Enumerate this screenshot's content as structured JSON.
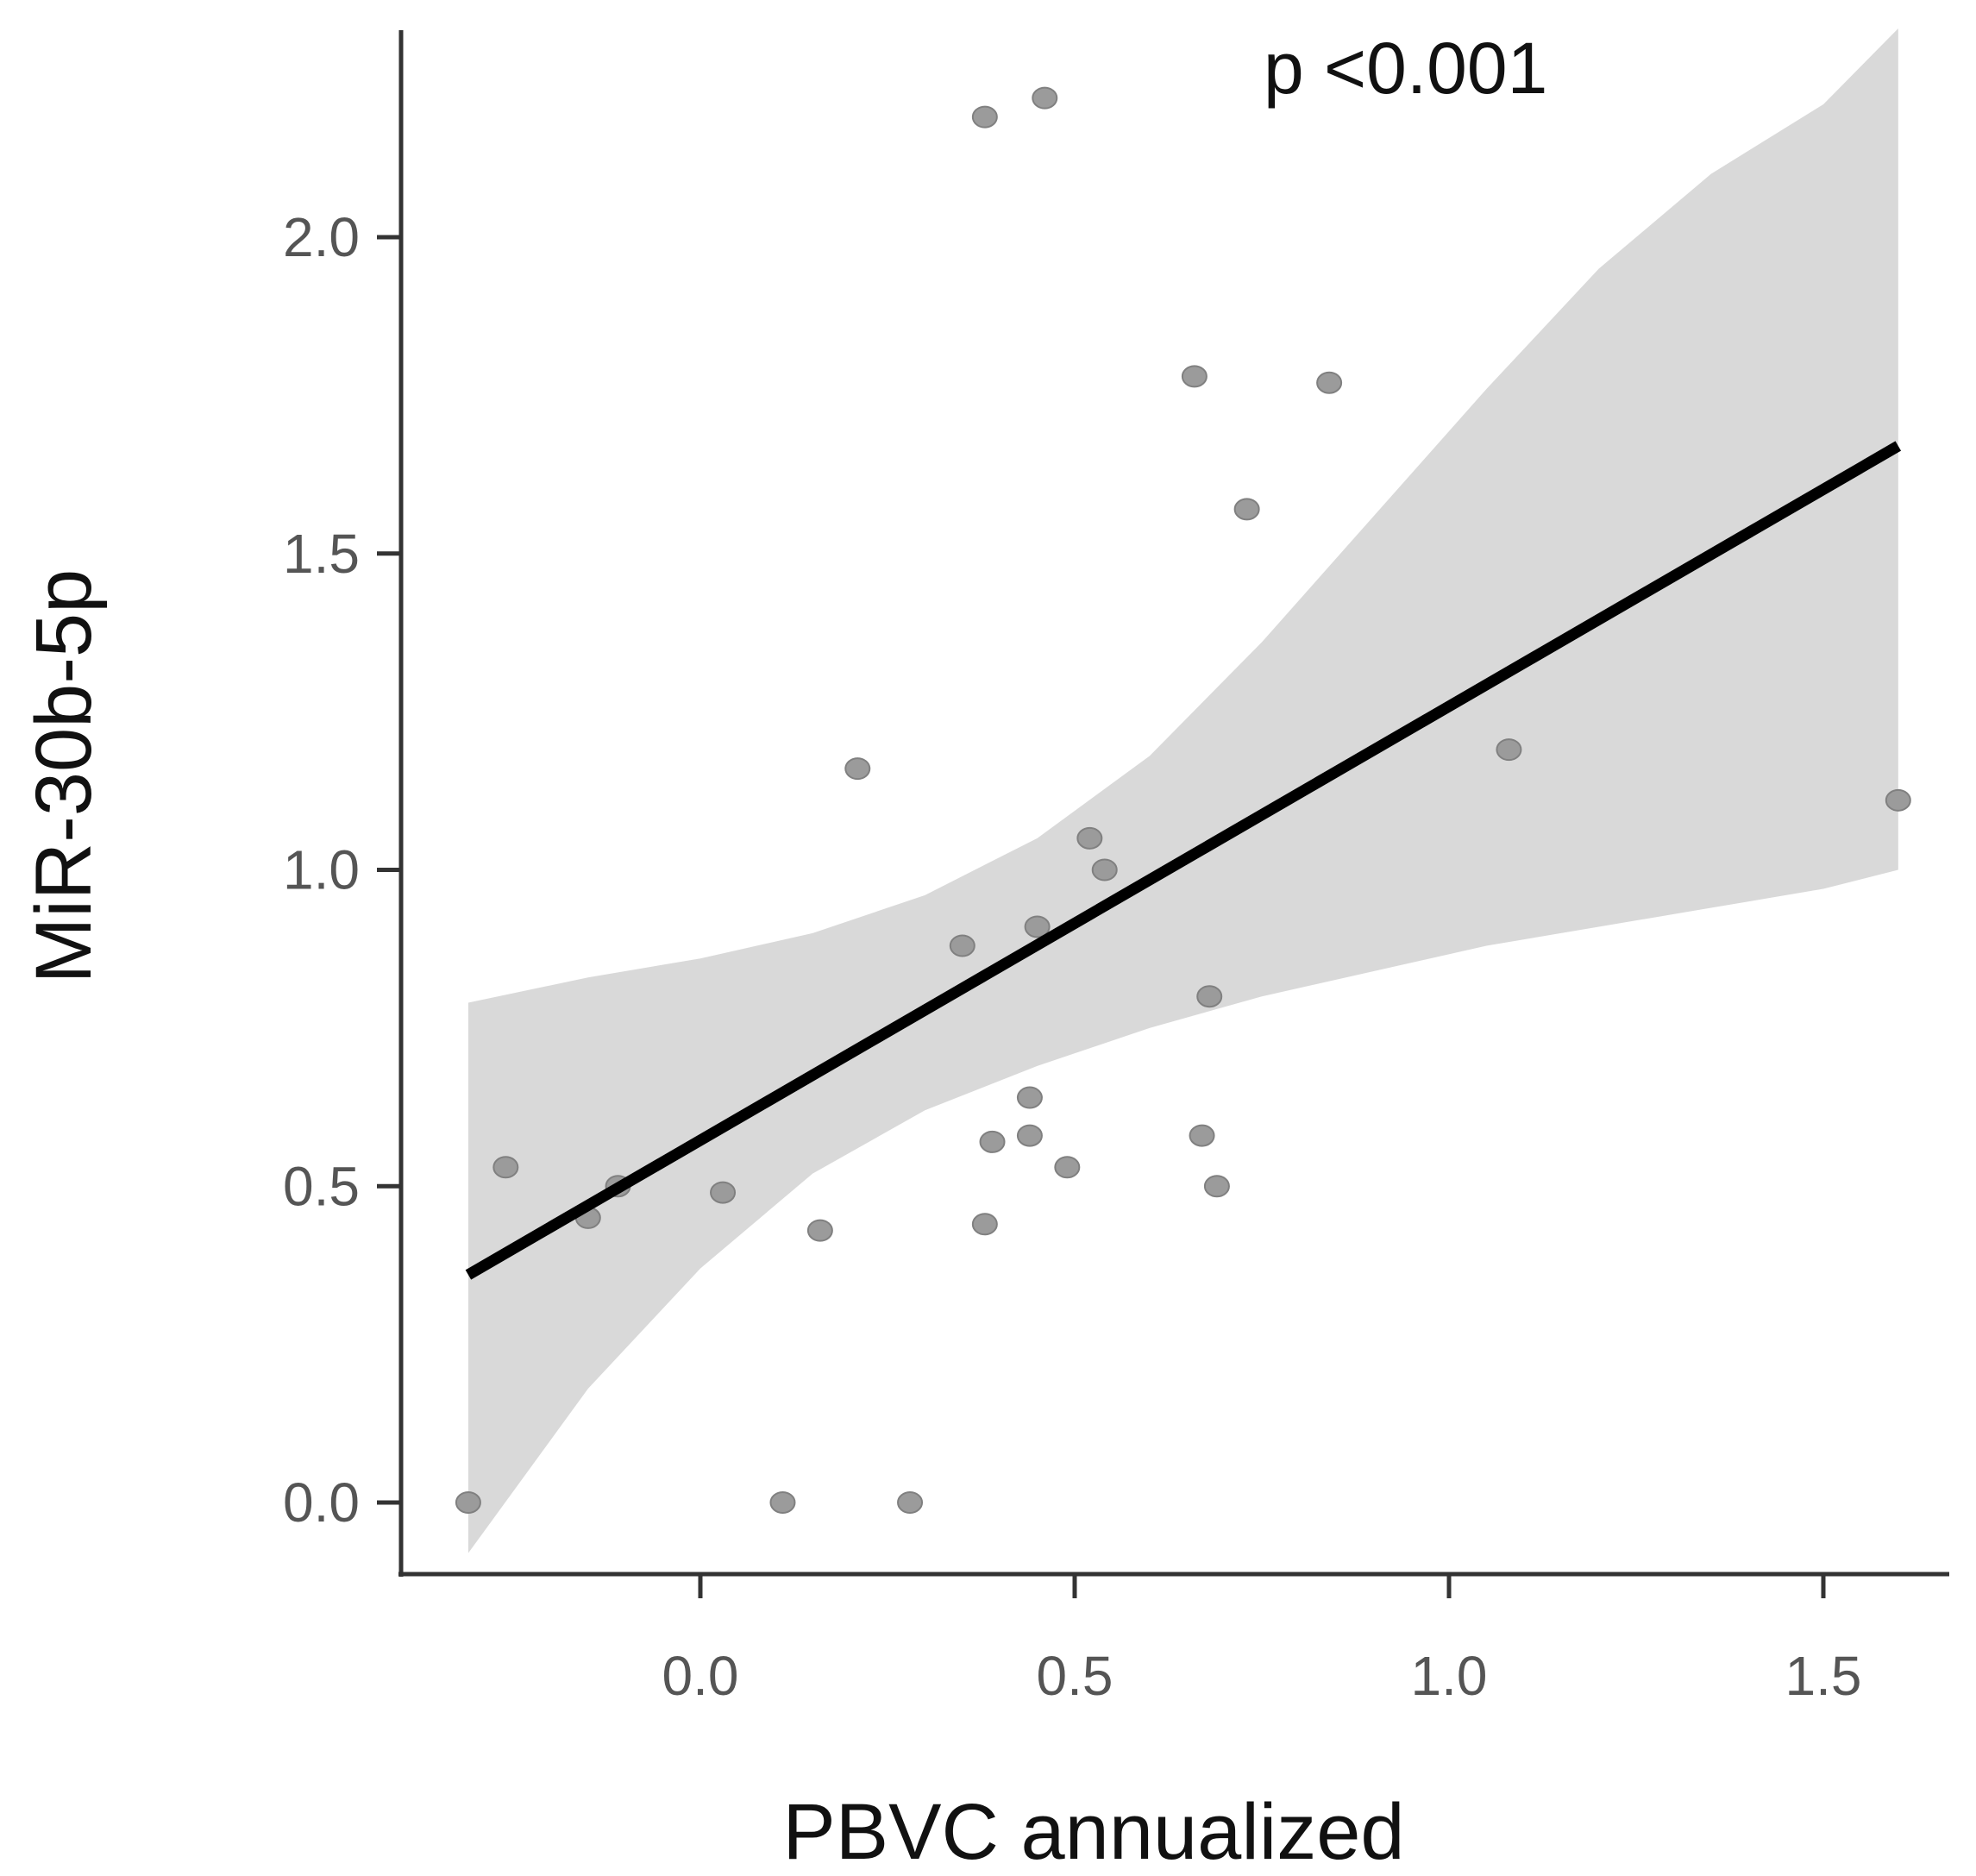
{
  "chart_data": {
    "type": "scatter",
    "title": "",
    "xlabel": "PBVC annualized",
    "ylabel": "MiR-30b-5p",
    "xlim": [
      -0.45,
      1.62
    ],
    "ylim": [
      -0.1,
      2.32
    ],
    "x_ticks": [
      0.0,
      0.5,
      1.0,
      1.5
    ],
    "x_tick_labels": [
      "0.0",
      "0.5",
      "1.0",
      "1.5"
    ],
    "y_ticks": [
      0.0,
      0.5,
      1.0,
      1.5,
      2.0
    ],
    "y_tick_labels": [
      "0.0",
      "0.5",
      "1.0",
      "1.5",
      "2.0"
    ],
    "grid": false,
    "annotation": "p <0.001",
    "points": [
      {
        "x": -0.31,
        "y": 0.0
      },
      {
        "x": -0.26,
        "y": 0.53
      },
      {
        "x": -0.15,
        "y": 0.45
      },
      {
        "x": -0.11,
        "y": 0.5
      },
      {
        "x": 0.03,
        "y": 0.49
      },
      {
        "x": 0.11,
        "y": 0.0
      },
      {
        "x": 0.16,
        "y": 0.43
      },
      {
        "x": 0.21,
        "y": 1.16
      },
      {
        "x": 0.28,
        "y": 0.0
      },
      {
        "x": 0.35,
        "y": 0.88
      },
      {
        "x": 0.38,
        "y": 0.44
      },
      {
        "x": 0.38,
        "y": 2.19
      },
      {
        "x": 0.39,
        "y": 0.57
      },
      {
        "x": 0.44,
        "y": 0.64
      },
      {
        "x": 0.44,
        "y": 0.58
      },
      {
        "x": 0.45,
        "y": 0.91
      },
      {
        "x": 0.46,
        "y": 2.22
      },
      {
        "x": 0.49,
        "y": 0.53
      },
      {
        "x": 0.52,
        "y": 1.05
      },
      {
        "x": 0.54,
        "y": 1.0
      },
      {
        "x": 0.66,
        "y": 1.78
      },
      {
        "x": 0.67,
        "y": 0.58
      },
      {
        "x": 0.68,
        "y": 0.8
      },
      {
        "x": 0.69,
        "y": 0.5
      },
      {
        "x": 0.73,
        "y": 1.57
      },
      {
        "x": 0.84,
        "y": 1.77
      },
      {
        "x": 1.08,
        "y": 1.19
      },
      {
        "x": 1.6,
        "y": 1.11
      }
    ],
    "regression": {
      "x": [
        -0.31,
        1.6
      ],
      "y": [
        0.36,
        1.67
      ]
    },
    "confidence_band": {
      "x": [
        -0.31,
        -0.15,
        0.0,
        0.15,
        0.3,
        0.45,
        0.6,
        0.75,
        0.9,
        1.05,
        1.2,
        1.35,
        1.5,
        1.6
      ],
      "upper": [
        0.79,
        0.83,
        0.86,
        0.9,
        0.96,
        1.05,
        1.18,
        1.36,
        1.56,
        1.76,
        1.95,
        2.1,
        2.21,
        2.33
      ],
      "lower": [
        -0.08,
        0.18,
        0.37,
        0.52,
        0.62,
        0.69,
        0.75,
        0.8,
        0.84,
        0.88,
        0.91,
        0.94,
        0.97,
        1.0
      ]
    },
    "colors": {
      "points": "#9b9b9b",
      "points_stroke": "#808080",
      "line": "#000000",
      "band": "#d9d9d9",
      "axis": "#333333"
    }
  }
}
